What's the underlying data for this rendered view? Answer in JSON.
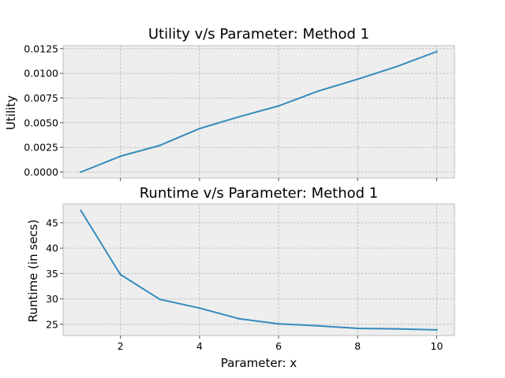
{
  "chart_data": [
    {
      "type": "line",
      "title": "Utility v/s Parameter: Method 1",
      "xlabel": "",
      "ylabel": "Utility",
      "grid": true,
      "xlim": [
        0.55,
        10.45
      ],
      "ylim": [
        -0.0006,
        0.0128
      ],
      "x_ticks": [
        2,
        4,
        6,
        8,
        10
      ],
      "y_ticks": [
        0.0,
        0.0025,
        0.005,
        0.0075,
        0.01,
        0.0125
      ],
      "y_tick_labels": [
        "0.0000",
        "0.0025",
        "0.0050",
        "0.0075",
        "0.0100",
        "0.0125"
      ],
      "series": [
        {
          "color": "#348abd",
          "x": [
            1,
            2,
            3,
            4,
            5,
            6,
            7,
            8,
            9,
            10
          ],
          "y": [
            0.0,
            0.0016,
            0.0027,
            0.0044,
            0.0056,
            0.0067,
            0.0082,
            0.0094,
            0.0107,
            0.0122
          ]
        }
      ]
    },
    {
      "type": "line",
      "title": "Runtime v/s Parameter: Method 1",
      "xlabel": "Parameter: x",
      "ylabel": "Runtime (in secs)",
      "grid": true,
      "xlim": [
        0.55,
        10.45
      ],
      "ylim": [
        22.8,
        48.7
      ],
      "x_ticks": [
        2,
        4,
        6,
        8,
        10
      ],
      "x_tick_labels": [
        "2",
        "4",
        "6",
        "8",
        "10"
      ],
      "y_ticks": [
        25,
        30,
        35,
        40,
        45
      ],
      "y_tick_labels": [
        "25",
        "30",
        "35",
        "40",
        "45"
      ],
      "series": [
        {
          "color": "#348abd",
          "x": [
            1,
            2,
            3,
            4,
            5,
            6,
            7,
            8,
            9,
            10
          ],
          "y": [
            47.4,
            34.8,
            29.9,
            28.2,
            26.1,
            25.1,
            24.7,
            24.2,
            24.1,
            23.9
          ]
        }
      ]
    }
  ]
}
